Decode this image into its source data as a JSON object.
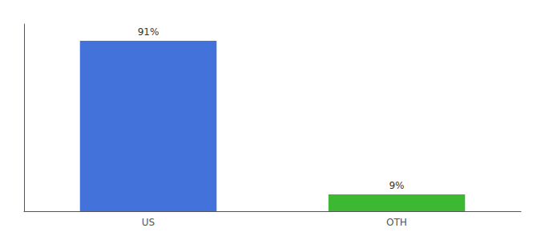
{
  "chart_data": {
    "type": "bar",
    "categories": [
      "US",
      "OTH"
    ],
    "values": [
      91,
      9
    ],
    "value_labels": [
      "91%",
      "9%"
    ],
    "colors": [
      "#4472db",
      "#3cb832"
    ],
    "ylim": [
      0,
      100
    ],
    "tick_labels": "x",
    "grid": false,
    "data_labels": true
  }
}
